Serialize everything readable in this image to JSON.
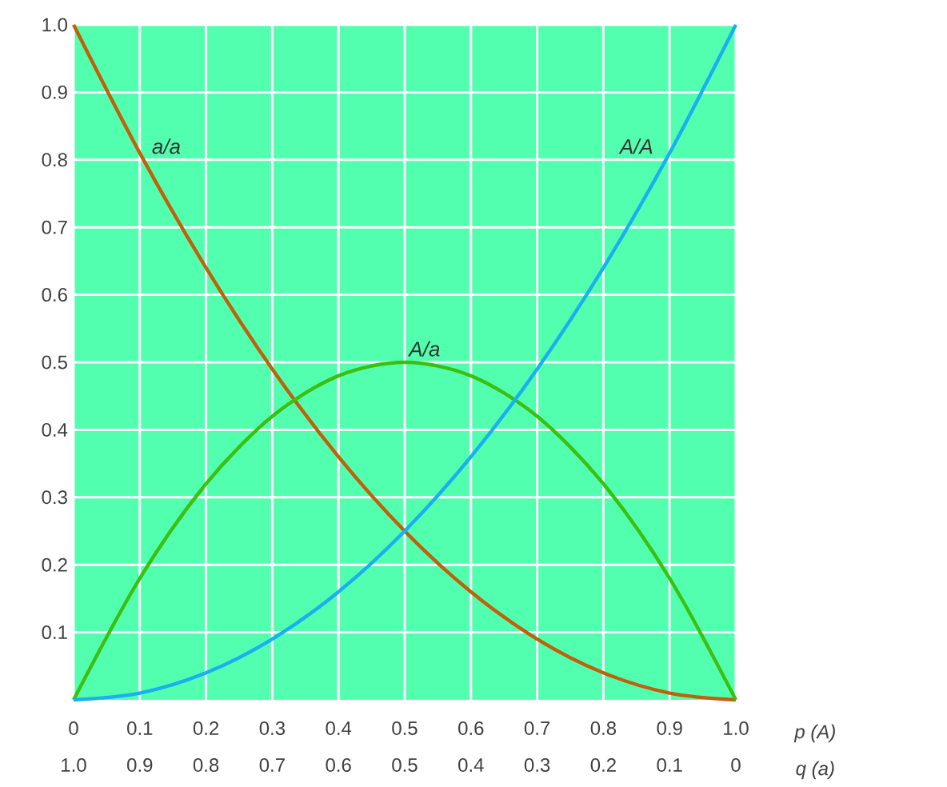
{
  "chart_data": {
    "type": "line",
    "x": [
      0,
      0.1,
      0.2,
      0.3,
      0.4,
      0.5,
      0.6,
      0.7,
      0.8,
      0.9,
      1.0
    ],
    "series": [
      {
        "color": "#c0600c",
        "values": [
          1.0,
          0.81,
          0.64,
          0.49,
          0.36,
          0.25,
          0.16,
          0.09,
          0.04,
          0.01,
          0
        ]
      },
      {
        "color": "#3cc010",
        "values": [
          0,
          0.18,
          0.32,
          0.42,
          0.48,
          0.5,
          0.48,
          0.42,
          0.32,
          0.18,
          0
        ]
      },
      {
        "color": "#1ab0f0",
        "values": [
          0,
          0.01,
          0.04,
          0.09,
          0.16,
          0.25,
          0.36,
          0.49,
          0.64,
          0.81,
          1.0
        ]
      }
    ],
    "xlabel": "p (A)",
    "x2label": "q (a)",
    "xlim": [
      0,
      1
    ],
    "ylim": [
      0,
      1
    ],
    "x2lim": [
      1,
      0
    ],
    "xticks": [
      0,
      0.1,
      0.2,
      0.3,
      0.4,
      0.5,
      0.6,
      0.7,
      0.8,
      0.9,
      {
        "value": 1,
        "label": "1.0"
      }
    ],
    "x2ticks": [
      {
        "value": 1,
        "label": "1.0"
      },
      0.9,
      0.8,
      0.7,
      0.6,
      0.5,
      0.4,
      0.3,
      0.2,
      0.1,
      0
    ],
    "yticks": [
      0.1,
      0.2,
      0.3,
      0.4,
      0.5,
      0.6,
      0.7,
      0.8,
      0.9,
      {
        "value": 1,
        "label": "1.0"
      }
    ],
    "grid": true,
    "annotations": [
      "a/a",
      "A/a",
      "A/A"
    ]
  }
}
